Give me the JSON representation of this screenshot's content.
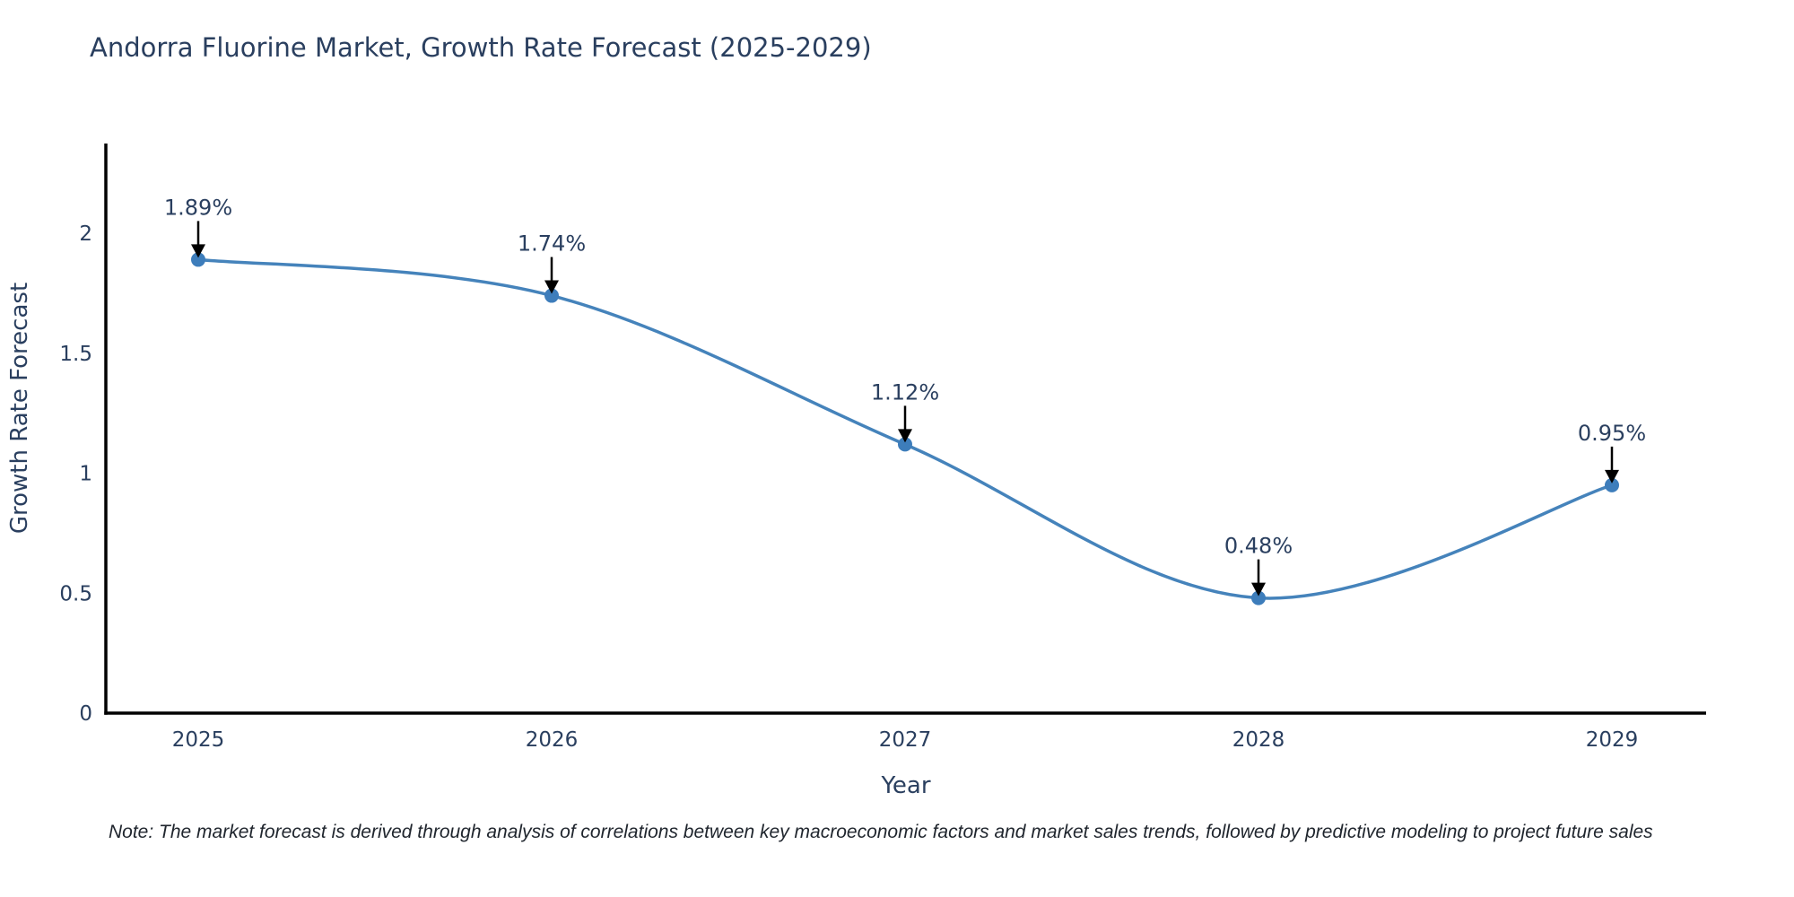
{
  "header": {
    "title": "Andorra Fluorine Market, Growth Rate Forecast (2025-2029)"
  },
  "chart_data": {
    "type": "line",
    "line_shape": "spline",
    "x": [
      2025,
      2026,
      2027,
      2028,
      2029
    ],
    "xtick_labels": [
      "2025",
      "2026",
      "2027",
      "2028",
      "2029"
    ],
    "series": [
      {
        "name": "Growth Rate Forecast",
        "values": [
          1.89,
          1.74,
          1.12,
          0.48,
          0.95
        ]
      }
    ],
    "point_labels": [
      "1.89%",
      "1.74%",
      "1.12%",
      "0.48%",
      "0.95%"
    ],
    "title": "Andorra Fluorine Market, Growth Rate Forecast (2025-2029)",
    "xlabel": "Year",
    "ylabel": "Growth Rate Forecast",
    "ylim": [
      0,
      2.37
    ],
    "yticks": [
      0,
      0.5,
      1,
      1.5,
      2
    ],
    "ytick_labels": [
      "0",
      "0.5",
      "1",
      "1.5",
      "2"
    ],
    "grid": false,
    "legend_position": "none",
    "colors": {
      "line": "#4583bb",
      "marker": "#3d7dbb",
      "axis_line": "#000000",
      "title_text": "#2a3f5f",
      "tick_text": "#2a3f5f",
      "axis_title_text": "#2a3f5f",
      "annotation_text": "#2a3f5f",
      "annotation_arrow": "#000000"
    }
  },
  "footer": {
    "note": "Note: The market forecast is derived through analysis of correlations between key macroeconomic factors and market sales trends, followed by predictive modeling to project future sales"
  }
}
